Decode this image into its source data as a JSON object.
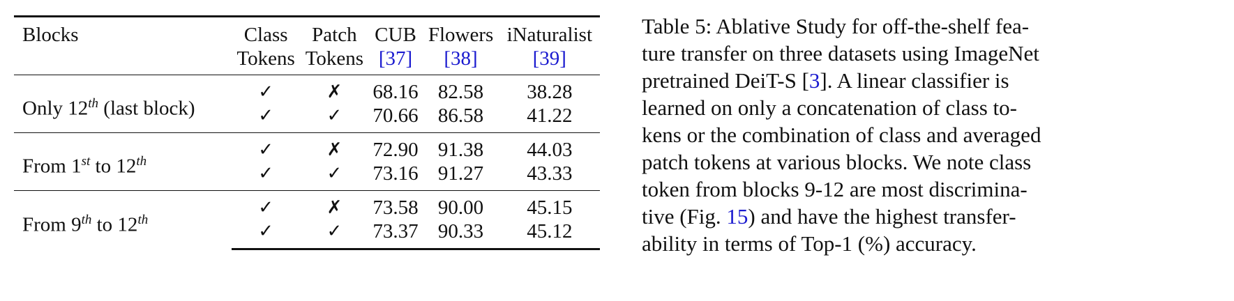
{
  "table": {
    "headers": {
      "blocks": "Blocks",
      "class_tokens": [
        "Class",
        "Tokens"
      ],
      "patch_tokens": [
        "Patch",
        "Tokens"
      ],
      "cub": [
        "CUB",
        "[37]"
      ],
      "flowers": [
        "Flowers",
        "[38]"
      ],
      "inat": [
        "iNaturalist",
        "[39]"
      ]
    },
    "groups": [
      {
        "label_parts": [
          "Only 12",
          "th",
          " (last block)"
        ],
        "rows": [
          {
            "class_tok": "✓",
            "patch_tok": "✗",
            "cub": "68.16",
            "flowers": "82.58",
            "inat": "38.28"
          },
          {
            "class_tok": "✓",
            "patch_tok": "✓",
            "cub": "70.66",
            "flowers": "86.58",
            "inat": "41.22"
          }
        ]
      },
      {
        "label_parts": [
          "From 1",
          "st",
          " to 12",
          "th"
        ],
        "rows": [
          {
            "class_tok": "✓",
            "patch_tok": "✗",
            "cub": "72.90",
            "flowers": "91.38",
            "inat": "44.03"
          },
          {
            "class_tok": "✓",
            "patch_tok": "✓",
            "cub": "73.16",
            "flowers": "91.27",
            "inat": "43.33"
          }
        ]
      },
      {
        "label_parts": [
          "From 9",
          "th",
          " to 12",
          "th"
        ],
        "rows": [
          {
            "class_tok": "✓",
            "patch_tok": "✗",
            "cub": "73.58",
            "flowers": "90.00",
            "inat": "45.15"
          },
          {
            "class_tok": "✓",
            "patch_tok": "✓",
            "cub": "73.37",
            "flowers": "90.33",
            "inat": "45.12"
          }
        ]
      }
    ],
    "bold_cells": [
      "91.38",
      "73.58",
      "45.15"
    ]
  },
  "caption": {
    "lines": [
      "Table 5: Ablative Study for off-the-shelf fea-",
      "ture transfer on three datasets using ImageNet",
      "pretrained DeiT-S ",
      "learned on only a concatenation of class to-",
      "kens or the combination of class and averaged",
      "patch tokens at various blocks. We note class",
      "token from blocks 9-12 are most discrimina-",
      "tive (Fig. ",
      "ability in terms of Top-1 (%) accuracy."
    ],
    "cite_3": "3",
    "line3_rest": "].  A linear classifier is",
    "fig_ref": "15",
    "line8_rest": ") and have the highest transfer-"
  },
  "colors": {
    "link": "#1a1acf",
    "text": "#111111"
  }
}
